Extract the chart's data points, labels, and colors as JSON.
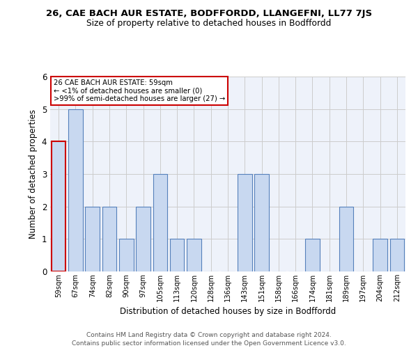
{
  "title": "26, CAE BACH AUR ESTATE, BODFFORDD, LLANGEFNI, LL77 7JS",
  "subtitle": "Size of property relative to detached houses in Bodffordd",
  "xlabel": "Distribution of detached houses by size in Bodffordd",
  "ylabel": "Number of detached properties",
  "categories": [
    "59sqm",
    "67sqm",
    "74sqm",
    "82sqm",
    "90sqm",
    "97sqm",
    "105sqm",
    "113sqm",
    "120sqm",
    "128sqm",
    "136sqm",
    "143sqm",
    "151sqm",
    "158sqm",
    "166sqm",
    "174sqm",
    "181sqm",
    "189sqm",
    "197sqm",
    "204sqm",
    "212sqm"
  ],
  "values": [
    4,
    5,
    2,
    2,
    1,
    2,
    3,
    1,
    1,
    0,
    0,
    3,
    3,
    0,
    0,
    1,
    0,
    2,
    0,
    1,
    1
  ],
  "highlight_index": 0,
  "bar_color": "#c8d8f0",
  "bar_edge_color": "#5580bb",
  "highlight_bar_edge_color": "#cc0000",
  "annotation_box_edge_color": "#cc0000",
  "annotation_lines": [
    "26 CAE BACH AUR ESTATE: 59sqm",
    "← <1% of detached houses are smaller (0)",
    ">99% of semi-detached houses are larger (27) →"
  ],
  "ylim": [
    0,
    6
  ],
  "yticks": [
    0,
    1,
    2,
    3,
    4,
    5,
    6
  ],
  "grid_color": "#cccccc",
  "background_color": "#eef2fa",
  "footnote1": "Contains HM Land Registry data © Crown copyright and database right 2024.",
  "footnote2": "Contains public sector information licensed under the Open Government Licence v3.0."
}
